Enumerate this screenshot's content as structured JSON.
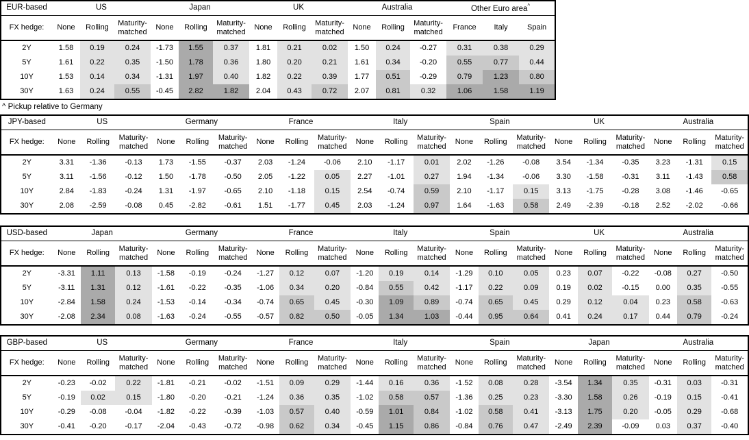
{
  "page": {
    "footnote": "^ Pickup relative to Germany",
    "fx_hedge_label": "FX hedge:",
    "tenors": [
      "2Y",
      "5Y",
      "10Y",
      "30Y"
    ],
    "hedge_columns": [
      "None",
      "Rolling",
      "Maturity-matched"
    ]
  },
  "colors": {
    "shade_light": "#e2e2e2",
    "shade_medium": "#c9c9c9",
    "shade_dark": "#aaaaaa",
    "border": "#000000"
  },
  "shading_rule": {
    "applies_to": "Rolling and Maturity-matched columns, plus all Other Euro area columns",
    "levels": [
      {
        "min": 0.0,
        "class": "shade-light"
      },
      {
        "min": 0.5,
        "class": "shade-medium"
      },
      {
        "min": 1.0,
        "class": "shade-dark"
      }
    ],
    "negative_or_none_column": "white"
  },
  "tables": [
    {
      "base_label": "EUR-based",
      "groups": [
        {
          "name": "US",
          "rows": [
            [
              "1.58",
              "0.19",
              "0.24"
            ],
            [
              "1.61",
              "0.22",
              "0.35"
            ],
            [
              "1.53",
              "0.14",
              "0.34"
            ],
            [
              "1.63",
              "0.24",
              "0.55"
            ]
          ]
        },
        {
          "name": "Japan",
          "rows": [
            [
              "-1.73",
              "1.55",
              "0.37"
            ],
            [
              "-1.50",
              "1.78",
              "0.36"
            ],
            [
              "-1.31",
              "1.97",
              "0.40"
            ],
            [
              "-0.45",
              "2.82",
              "1.82"
            ]
          ]
        },
        {
          "name": "UK",
          "rows": [
            [
              "1.81",
              "0.21",
              "0.02"
            ],
            [
              "1.80",
              "0.20",
              "0.21"
            ],
            [
              "1.82",
              "0.22",
              "0.39"
            ],
            [
              "2.04",
              "0.43",
              "0.72"
            ]
          ]
        },
        {
          "name": "Australia",
          "rows": [
            [
              "1.50",
              "0.24",
              "-0.27"
            ],
            [
              "1.61",
              "0.34",
              "-0.20"
            ],
            [
              "1.77",
              "0.51",
              "-0.29"
            ],
            [
              "2.07",
              "0.81",
              "0.32"
            ]
          ]
        },
        {
          "name": "Other Euro area",
          "name_superscript": "^",
          "columns": [
            "France",
            "Italy",
            "Spain"
          ],
          "shaded_columns": [
            0,
            1,
            2
          ],
          "rows": [
            [
              "0.31",
              "0.38",
              "0.29"
            ],
            [
              "0.55",
              "0.77",
              "0.44"
            ],
            [
              "0.79",
              "1.23",
              "0.80"
            ],
            [
              "1.06",
              "1.58",
              "1.19"
            ]
          ]
        }
      ]
    },
    {
      "base_label": "JPY-based",
      "groups": [
        {
          "name": "US",
          "rows": [
            [
              "3.31",
              "-1.36",
              "-0.13"
            ],
            [
              "3.11",
              "-1.56",
              "-0.12"
            ],
            [
              "2.84",
              "-1.83",
              "-0.24"
            ],
            [
              "2.08",
              "-2.59",
              "-0.08"
            ]
          ]
        },
        {
          "name": "Germany",
          "rows": [
            [
              "1.73",
              "-1.55",
              "-0.37"
            ],
            [
              "1.50",
              "-1.78",
              "-0.50"
            ],
            [
              "1.31",
              "-1.97",
              "-0.65"
            ],
            [
              "0.45",
              "-2.82",
              "-0.61"
            ]
          ]
        },
        {
          "name": "France",
          "rows": [
            [
              "2.03",
              "-1.24",
              "-0.06"
            ],
            [
              "2.05",
              "-1.22",
              "0.05"
            ],
            [
              "2.10",
              "-1.18",
              "0.15"
            ],
            [
              "1.51",
              "-1.77",
              "0.45"
            ]
          ]
        },
        {
          "name": "Italy",
          "rows": [
            [
              "2.10",
              "-1.17",
              "0.01"
            ],
            [
              "2.27",
              "-1.01",
              "0.27"
            ],
            [
              "2.54",
              "-0.74",
              "0.59"
            ],
            [
              "2.03",
              "-1.24",
              "0.97"
            ]
          ]
        },
        {
          "name": "Spain",
          "rows": [
            [
              "2.02",
              "-1.26",
              "-0.08"
            ],
            [
              "1.94",
              "-1.34",
              "-0.06"
            ],
            [
              "2.10",
              "-1.17",
              "0.15"
            ],
            [
              "1.64",
              "-1.63",
              "0.58"
            ]
          ]
        },
        {
          "name": "UK",
          "rows": [
            [
              "3.54",
              "-1.34",
              "-0.35"
            ],
            [
              "3.30",
              "-1.58",
              "-0.31"
            ],
            [
              "3.13",
              "-1.75",
              "-0.28"
            ],
            [
              "2.49",
              "-2.39",
              "-0.18"
            ]
          ]
        },
        {
          "name": "Australia",
          "rows": [
            [
              "3.23",
              "-1.31",
              "0.15"
            ],
            [
              "3.11",
              "-1.43",
              "0.58"
            ],
            [
              "3.08",
              "-1.46",
              "-0.65"
            ],
            [
              "2.52",
              "-2.02",
              "-0.66"
            ]
          ]
        }
      ]
    },
    {
      "base_label": "USD-based",
      "groups": [
        {
          "name": "Japan",
          "rows": [
            [
              "-3.31",
              "1.11",
              "0.13"
            ],
            [
              "-3.11",
              "1.31",
              "0.12"
            ],
            [
              "-2.84",
              "1.58",
              "0.24"
            ],
            [
              "-2.08",
              "2.34",
              "0.08"
            ]
          ]
        },
        {
          "name": "Germany",
          "rows": [
            [
              "-1.58",
              "-0.19",
              "-0.24"
            ],
            [
              "-1.61",
              "-0.22",
              "-0.35"
            ],
            [
              "-1.53",
              "-0.14",
              "-0.34"
            ],
            [
              "-1.63",
              "-0.24",
              "-0.55"
            ]
          ]
        },
        {
          "name": "France",
          "rows": [
            [
              "-1.27",
              "0.12",
              "0.07"
            ],
            [
              "-1.06",
              "0.34",
              "0.20"
            ],
            [
              "-0.74",
              "0.65",
              "0.45"
            ],
            [
              "-0.57",
              "0.82",
              "0.50"
            ]
          ]
        },
        {
          "name": "Italy",
          "rows": [
            [
              "-1.20",
              "0.19",
              "0.14"
            ],
            [
              "-0.84",
              "0.55",
              "0.42"
            ],
            [
              "-0.30",
              "1.09",
              "0.89"
            ],
            [
              "-0.05",
              "1.34",
              "1.03"
            ]
          ]
        },
        {
          "name": "Spain",
          "rows": [
            [
              "-1.29",
              "0.10",
              "0.05"
            ],
            [
              "-1.17",
              "0.22",
              "0.09"
            ],
            [
              "-0.74",
              "0.65",
              "0.45"
            ],
            [
              "-0.44",
              "0.95",
              "0.64"
            ]
          ]
        },
        {
          "name": "UK",
          "rows": [
            [
              "0.23",
              "0.07",
              "-0.22"
            ],
            [
              "0.19",
              "0.02",
              "-0.15"
            ],
            [
              "0.29",
              "0.12",
              "0.04"
            ],
            [
              "0.41",
              "0.24",
              "0.17"
            ]
          ]
        },
        {
          "name": "Australia",
          "rows": [
            [
              "-0.08",
              "0.27",
              "-0.50"
            ],
            [
              "0.00",
              "0.35",
              "-0.55"
            ],
            [
              "0.23",
              "0.58",
              "-0.63"
            ],
            [
              "0.44",
              "0.79",
              "-0.24"
            ]
          ]
        }
      ]
    },
    {
      "base_label": "GBP-based",
      "groups": [
        {
          "name": "US",
          "rows": [
            [
              "-0.23",
              "-0.02",
              "0.22"
            ],
            [
              "-0.19",
              "0.02",
              "0.15"
            ],
            [
              "-0.29",
              "-0.08",
              "-0.04"
            ],
            [
              "-0.41",
              "-0.20",
              "-0.17"
            ]
          ]
        },
        {
          "name": "Germany",
          "rows": [
            [
              "-1.81",
              "-0.21",
              "-0.02"
            ],
            [
              "-1.80",
              "-0.20",
              "-0.21"
            ],
            [
              "-1.82",
              "-0.22",
              "-0.39"
            ],
            [
              "-2.04",
              "-0.43",
              "-0.72"
            ]
          ]
        },
        {
          "name": "France",
          "rows": [
            [
              "-1.51",
              "0.09",
              "0.29"
            ],
            [
              "-1.24",
              "0.36",
              "0.35"
            ],
            [
              "-1.03",
              "0.57",
              "0.40"
            ],
            [
              "-0.98",
              "0.62",
              "0.34"
            ]
          ]
        },
        {
          "name": "Italy",
          "rows": [
            [
              "-1.44",
              "0.16",
              "0.36"
            ],
            [
              "-1.02",
              "0.58",
              "0.57"
            ],
            [
              "-0.59",
              "1.01",
              "0.84"
            ],
            [
              "-0.45",
              "1.15",
              "0.86"
            ]
          ]
        },
        {
          "name": "Spain",
          "rows": [
            [
              "-1.52",
              "0.08",
              "0.28"
            ],
            [
              "-1.36",
              "0.25",
              "0.23"
            ],
            [
              "-1.02",
              "0.58",
              "0.41"
            ],
            [
              "-0.84",
              "0.76",
              "0.47"
            ]
          ]
        },
        {
          "name": "Japan",
          "rows": [
            [
              "-3.54",
              "1.34",
              "0.35"
            ],
            [
              "-3.30",
              "1.58",
              "0.26"
            ],
            [
              "-3.13",
              "1.75",
              "0.20"
            ],
            [
              "-2.49",
              "2.39",
              "-0.09"
            ]
          ]
        },
        {
          "name": "Australia",
          "rows": [
            [
              "-0.31",
              "0.03",
              "-0.31"
            ],
            [
              "-0.19",
              "0.15",
              "-0.41"
            ],
            [
              "-0.05",
              "0.29",
              "-0.68"
            ],
            [
              "0.03",
              "0.37",
              "-0.40"
            ]
          ]
        }
      ]
    }
  ]
}
